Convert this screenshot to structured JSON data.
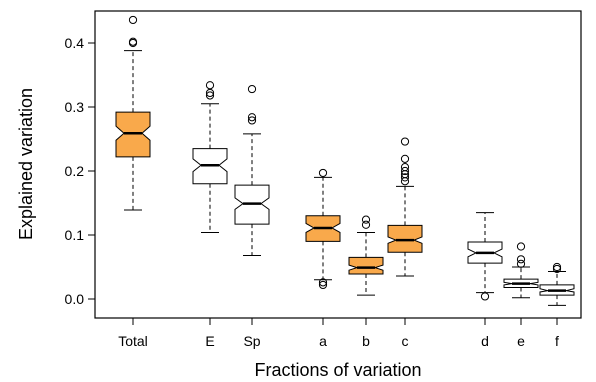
{
  "chart_data": {
    "type": "box",
    "title": "",
    "xlabel": "Fractions of variation",
    "ylabel": "Explained variation",
    "ylim": [
      -0.03,
      0.45
    ],
    "yticks": [
      0.0,
      0.1,
      0.2,
      0.3,
      0.4
    ],
    "ytick_labels": [
      "0.0",
      "0.1",
      "0.2",
      "0.3",
      "0.4"
    ],
    "notched": true,
    "grid": false,
    "legend": "none",
    "colors": {
      "highlight": "#f9a94b",
      "plain": "#ffffff",
      "outline": "#000000"
    },
    "boxes": [
      {
        "label": "Total",
        "group": 1,
        "highlight": true,
        "whisker_low": 0.139,
        "q1": 0.222,
        "notch_low": 0.248,
        "median": 0.259,
        "notch_high": 0.27,
        "q3": 0.292,
        "whisker_high": 0.388,
        "outliers": [
          0.4,
          0.402,
          0.436
        ]
      },
      {
        "label": "E",
        "group": 2,
        "highlight": false,
        "whisker_low": 0.104,
        "q1": 0.18,
        "notch_low": 0.199,
        "median": 0.209,
        "notch_high": 0.219,
        "q3": 0.235,
        "whisker_high": 0.305,
        "outliers": [
          0.318,
          0.322,
          0.334
        ]
      },
      {
        "label": "Sp",
        "group": 2,
        "highlight": false,
        "whisker_low": 0.068,
        "q1": 0.117,
        "notch_low": 0.14,
        "median": 0.149,
        "notch_high": 0.158,
        "q3": 0.178,
        "whisker_high": 0.258,
        "outliers": [
          0.279,
          0.284,
          0.328
        ]
      },
      {
        "label": "a",
        "group": 3,
        "highlight": true,
        "whisker_low": 0.03,
        "q1": 0.09,
        "notch_low": 0.104,
        "median": 0.111,
        "notch_high": 0.118,
        "q3": 0.13,
        "whisker_high": 0.19,
        "outliers": [
          0.022,
          0.026,
          0.197
        ]
      },
      {
        "label": "b",
        "group": 3,
        "highlight": true,
        "whisker_low": 0.006,
        "q1": 0.039,
        "notch_low": 0.045,
        "median": 0.049,
        "notch_high": 0.053,
        "q3": 0.065,
        "whisker_high": 0.104,
        "outliers": [
          0.116,
          0.124
        ]
      },
      {
        "label": "c",
        "group": 3,
        "highlight": true,
        "whisker_low": 0.036,
        "q1": 0.073,
        "notch_low": 0.087,
        "median": 0.092,
        "notch_high": 0.097,
        "q3": 0.115,
        "whisker_high": 0.176,
        "outliers": [
          0.184,
          0.19,
          0.195,
          0.2,
          0.206,
          0.219,
          0.246
        ]
      },
      {
        "label": "d",
        "group": 4,
        "highlight": false,
        "whisker_low": 0.01,
        "q1": 0.056,
        "notch_low": 0.066,
        "median": 0.072,
        "notch_high": 0.078,
        "q3": 0.089,
        "whisker_high": 0.135,
        "outliers": [
          0.004
        ]
      },
      {
        "label": "e",
        "group": 4,
        "highlight": false,
        "whisker_low": 0.002,
        "q1": 0.018,
        "notch_low": 0.022,
        "median": 0.024,
        "notch_high": 0.026,
        "q3": 0.031,
        "whisker_high": 0.05,
        "outliers": [
          0.055,
          0.062,
          0.082
        ]
      },
      {
        "label": "f",
        "group": 4,
        "highlight": false,
        "whisker_low": -0.01,
        "q1": 0.006,
        "notch_low": 0.011,
        "median": 0.013,
        "notch_high": 0.016,
        "q3": 0.022,
        "whisker_high": 0.043,
        "outliers": [
          0.047,
          0.05
        ]
      }
    ]
  }
}
